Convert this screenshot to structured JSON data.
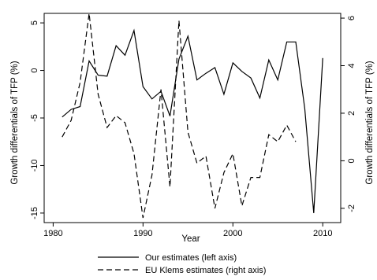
{
  "chart_data": {
    "type": "line",
    "title": "",
    "xlabel": "Year",
    "ylabel_left": "Growth differentials of TFP (%)",
    "ylabel_right": "Growth differentials of TFP (%)",
    "xlim": [
      1979,
      2012
    ],
    "ylim_left": [
      -16,
      6
    ],
    "ylim_right": [
      -2.6,
      6.2
    ],
    "xticks": [
      1980,
      1990,
      2000,
      2010
    ],
    "yticks_left": [
      5,
      0,
      -5,
      -10,
      -15
    ],
    "yticks_right": [
      6,
      4,
      2,
      0,
      -2
    ],
    "grid": false,
    "legend_position": "bottom",
    "series": [
      {
        "name": "Our estimates (left axis)",
        "axis": "left",
        "style": "solid",
        "color": "#000000",
        "points": [
          [
            1981,
            -4.9
          ],
          [
            1982,
            -4.1
          ],
          [
            1983,
            -3.8
          ],
          [
            1984,
            1.0
          ],
          [
            1985,
            -0.5
          ],
          [
            1986,
            -0.6
          ],
          [
            1987,
            2.6
          ],
          [
            1988,
            1.6
          ],
          [
            1989,
            4.2
          ],
          [
            1990,
            -1.7
          ],
          [
            1991,
            -3.0
          ],
          [
            1992,
            -2.2
          ],
          [
            1993,
            -4.8
          ],
          [
            1994,
            1.2
          ],
          [
            1995,
            3.6
          ],
          [
            1996,
            -1.0
          ],
          [
            1997,
            -0.3
          ],
          [
            1998,
            0.3
          ],
          [
            1999,
            -2.5
          ],
          [
            2000,
            0.8
          ],
          [
            2001,
            -0.1
          ],
          [
            2002,
            -0.8
          ],
          [
            2003,
            -2.9
          ],
          [
            2004,
            1.1
          ],
          [
            2005,
            -1.0
          ],
          [
            2006,
            3.0
          ],
          [
            2007,
            3.0
          ],
          [
            2008,
            -4.0
          ],
          [
            2009,
            -15.0
          ],
          [
            2010,
            1.3
          ]
        ]
      },
      {
        "name": "EU Klems estimates (right axis)",
        "axis": "right",
        "style": "dashed",
        "color": "#000000",
        "points": [
          [
            1981,
            1.0
          ],
          [
            1982,
            1.7
          ],
          [
            1983,
            3.3
          ],
          [
            1984,
            6.2
          ],
          [
            1985,
            2.8
          ],
          [
            1986,
            1.4
          ],
          [
            1987,
            1.9
          ],
          [
            1988,
            1.6
          ],
          [
            1989,
            0.3
          ],
          [
            1990,
            -2.4
          ],
          [
            1991,
            -0.6
          ],
          [
            1992,
            3.0
          ],
          [
            1993,
            -1.1
          ],
          [
            1994,
            5.9
          ],
          [
            1995,
            1.2
          ],
          [
            1996,
            -0.1
          ],
          [
            1997,
            0.2
          ],
          [
            1998,
            -2.0
          ],
          [
            1999,
            -0.5
          ],
          [
            2000,
            0.3
          ],
          [
            2001,
            -1.9
          ],
          [
            2002,
            -0.7
          ],
          [
            2003,
            -0.7
          ],
          [
            2004,
            1.1
          ],
          [
            2005,
            0.8
          ],
          [
            2006,
            1.5
          ],
          [
            2007,
            0.8
          ]
        ]
      }
    ]
  }
}
